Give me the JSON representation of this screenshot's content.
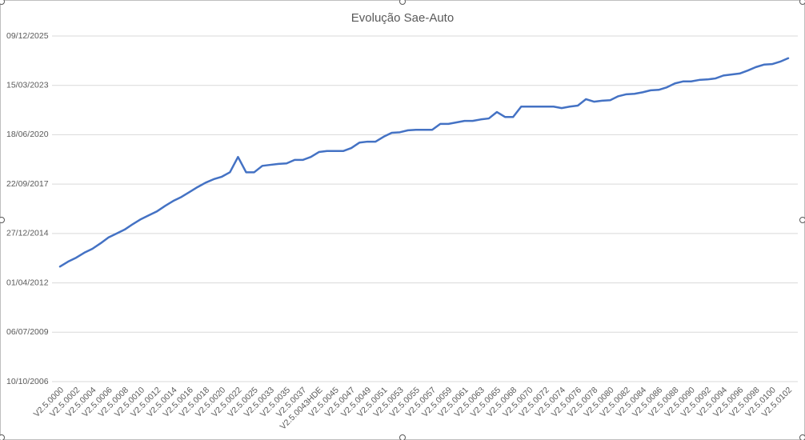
{
  "chart_data": {
    "type": "line",
    "title": "Evolução Sae-Auto",
    "categories": [
      "V2.5.0000",
      null,
      "V2.5.0002",
      null,
      "V2.5.0004",
      null,
      "V2.5.0006",
      null,
      "V2.5.0008",
      null,
      "V2.5.0010",
      null,
      "V2.5.0012",
      null,
      "V2.5.0014",
      null,
      "V2.5.0016",
      null,
      "V2.5.0018",
      null,
      "V2.5.0020",
      null,
      "V2.5.0022",
      null,
      "V2.5.0025",
      null,
      "V2.5.0033",
      null,
      "V2.5.0035",
      null,
      "V2.5.0037",
      null,
      "V2.5.0043HDE",
      null,
      "V2.5.0045",
      null,
      "V2.5.0047",
      null,
      "V2.5.0049",
      null,
      "V2.5.0051",
      null,
      "V2.5.0053",
      null,
      "V2.5.0055",
      null,
      "V2.5.0057",
      null,
      "V2.5.0059",
      null,
      "V2.5.0061",
      null,
      "V2.5.0063",
      null,
      "V2.5.0065",
      null,
      "V2.5.0068",
      null,
      "V2.5.0070",
      null,
      "V2.5.0072",
      null,
      "V2.5.0074",
      null,
      "V2.5.0076",
      null,
      "V2.5.0078",
      null,
      "V2.5.0080",
      null,
      "V2.5.0082",
      null,
      "V2.5.0084",
      null,
      "V2.5.0086",
      null,
      "V2.5.0088",
      null,
      "V2.5.0090",
      null,
      "V2.5.0092",
      null,
      "V2.5.0094",
      null,
      "V2.5.0096",
      null,
      "V2.5.0098",
      null,
      "V2.5.0100",
      null,
      "V2.5.0102"
    ],
    "values": [
      41330,
      41430,
      41510,
      41610,
      41690,
      41800,
      41920,
      42000,
      42080,
      42190,
      42290,
      42370,
      42450,
      42560,
      42660,
      42740,
      42840,
      42940,
      43030,
      43100,
      43150,
      43240,
      43550,
      43240,
      43240,
      43370,
      43390,
      43410,
      43420,
      43490,
      43490,
      43550,
      43650,
      43670,
      43670,
      43670,
      43730,
      43840,
      43860,
      43860,
      43960,
      44040,
      44050,
      44090,
      44100,
      44100,
      44100,
      44220,
      44220,
      44250,
      44280,
      44280,
      44310,
      44330,
      44460,
      44360,
      44360,
      44570,
      44570,
      44570,
      44570,
      44570,
      44540,
      44570,
      44590,
      44720,
      44670,
      44690,
      44700,
      44780,
      44820,
      44830,
      44860,
      44900,
      44910,
      44960,
      45040,
      45080,
      45080,
      45110,
      45120,
      45140,
      45200,
      45220,
      45240,
      45300,
      45370,
      45420,
      45430,
      45480,
      45550
    ],
    "color": "#4472c4",
    "ylim": [
      39000,
      46000
    ],
    "yticks": [
      {
        "value": 39000,
        "label": "10/10/2006"
      },
      {
        "value": 40000,
        "label": "06/07/2009"
      },
      {
        "value": 41000,
        "label": "01/04/2012"
      },
      {
        "value": 42000,
        "label": "27/12/2014"
      },
      {
        "value": 43000,
        "label": "22/09/2017"
      },
      {
        "value": 44000,
        "label": "18/06/2020"
      },
      {
        "value": 45000,
        "label": "15/03/2023"
      },
      {
        "value": 46000,
        "label": "09/12/2025"
      }
    ],
    "grid": true
  }
}
